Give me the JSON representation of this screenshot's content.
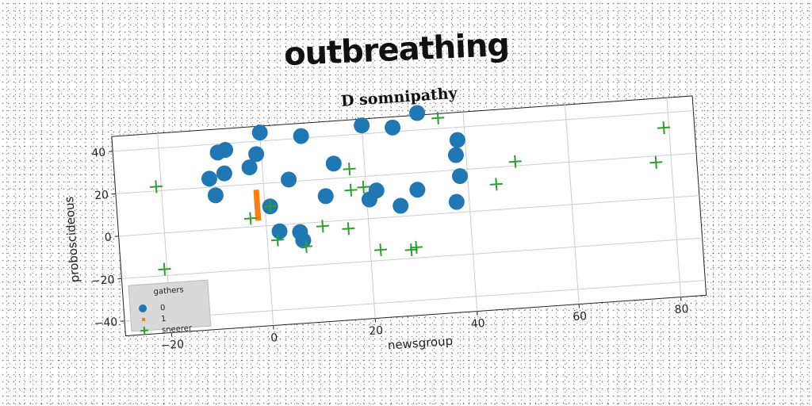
{
  "banner": "outbreathing",
  "chart_data": {
    "type": "scatter",
    "title": "D somnipathy",
    "xlabel": "newsgroup",
    "ylabel": "proboscideous",
    "xlim": [
      -29,
      85
    ],
    "ylim": [
      -47,
      47
    ],
    "xticks": [
      -20,
      0,
      20,
      40,
      60,
      80
    ],
    "yticks": [
      -40,
      -20,
      0,
      20,
      40
    ],
    "grid": true,
    "legend": {
      "title": "gathers",
      "placement": "lower-left",
      "entries": [
        "0",
        "1",
        "sneerer"
      ]
    },
    "series": [
      {
        "name": "0",
        "marker": "circle",
        "color": "#1f77b4",
        "points": [
          [
            -8.5,
            36
          ],
          [
            -7,
            37
          ],
          [
            -1,
            34
          ],
          [
            0,
            44
          ],
          [
            -2.5,
            28
          ],
          [
            -7.5,
            26
          ],
          [
            -10.5,
            24
          ],
          [
            -9.5,
            16
          ],
          [
            5,
            21
          ],
          [
            8,
            41
          ],
          [
            12,
            12
          ],
          [
            14,
            27
          ],
          [
            20,
            44
          ],
          [
            26,
            42
          ],
          [
            31,
            48
          ],
          [
            38.5,
            34
          ],
          [
            38,
            27
          ],
          [
            38.5,
            17
          ],
          [
            30,
            12
          ],
          [
            22,
            13
          ],
          [
            20.5,
            9
          ],
          [
            26.5,
            5
          ],
          [
            37.5,
            5
          ],
          [
            1,
            9
          ],
          [
            2.5,
            -3
          ],
          [
            6.5,
            -4
          ],
          [
            7,
            -8
          ]
        ]
      },
      {
        "name": "1",
        "marker": "square",
        "color": "#ff7f0e",
        "points": [
          [
            -1.5,
            16
          ],
          [
            -1.5,
            14
          ],
          [
            -1.5,
            12.5
          ],
          [
            -1.5,
            11
          ],
          [
            -1.5,
            9.5
          ],
          [
            -1.5,
            8
          ],
          [
            -1.5,
            6.5
          ],
          [
            -1.5,
            5
          ],
          [
            -1.5,
            4
          ]
        ]
      },
      {
        "name": "sneerer",
        "marker": "plus",
        "color": "#2ca02c",
        "points": [
          [
            -21,
            22
          ],
          [
            -20.5,
            -17
          ],
          [
            -3,
            4
          ],
          [
            1,
            9
          ],
          [
            2,
            -7
          ],
          [
            7.5,
            -11
          ],
          [
            11,
            -2
          ],
          [
            16,
            -4
          ],
          [
            17,
            24
          ],
          [
            17,
            14
          ],
          [
            19.5,
            15
          ],
          [
            22,
            -15
          ],
          [
            28,
            -16
          ],
          [
            29,
            -15
          ],
          [
            35,
            45
          ],
          [
            45.5,
            12
          ],
          [
            49.5,
            22
          ],
          [
            77,
            17
          ],
          [
            79,
            33
          ]
        ]
      }
    ]
  }
}
